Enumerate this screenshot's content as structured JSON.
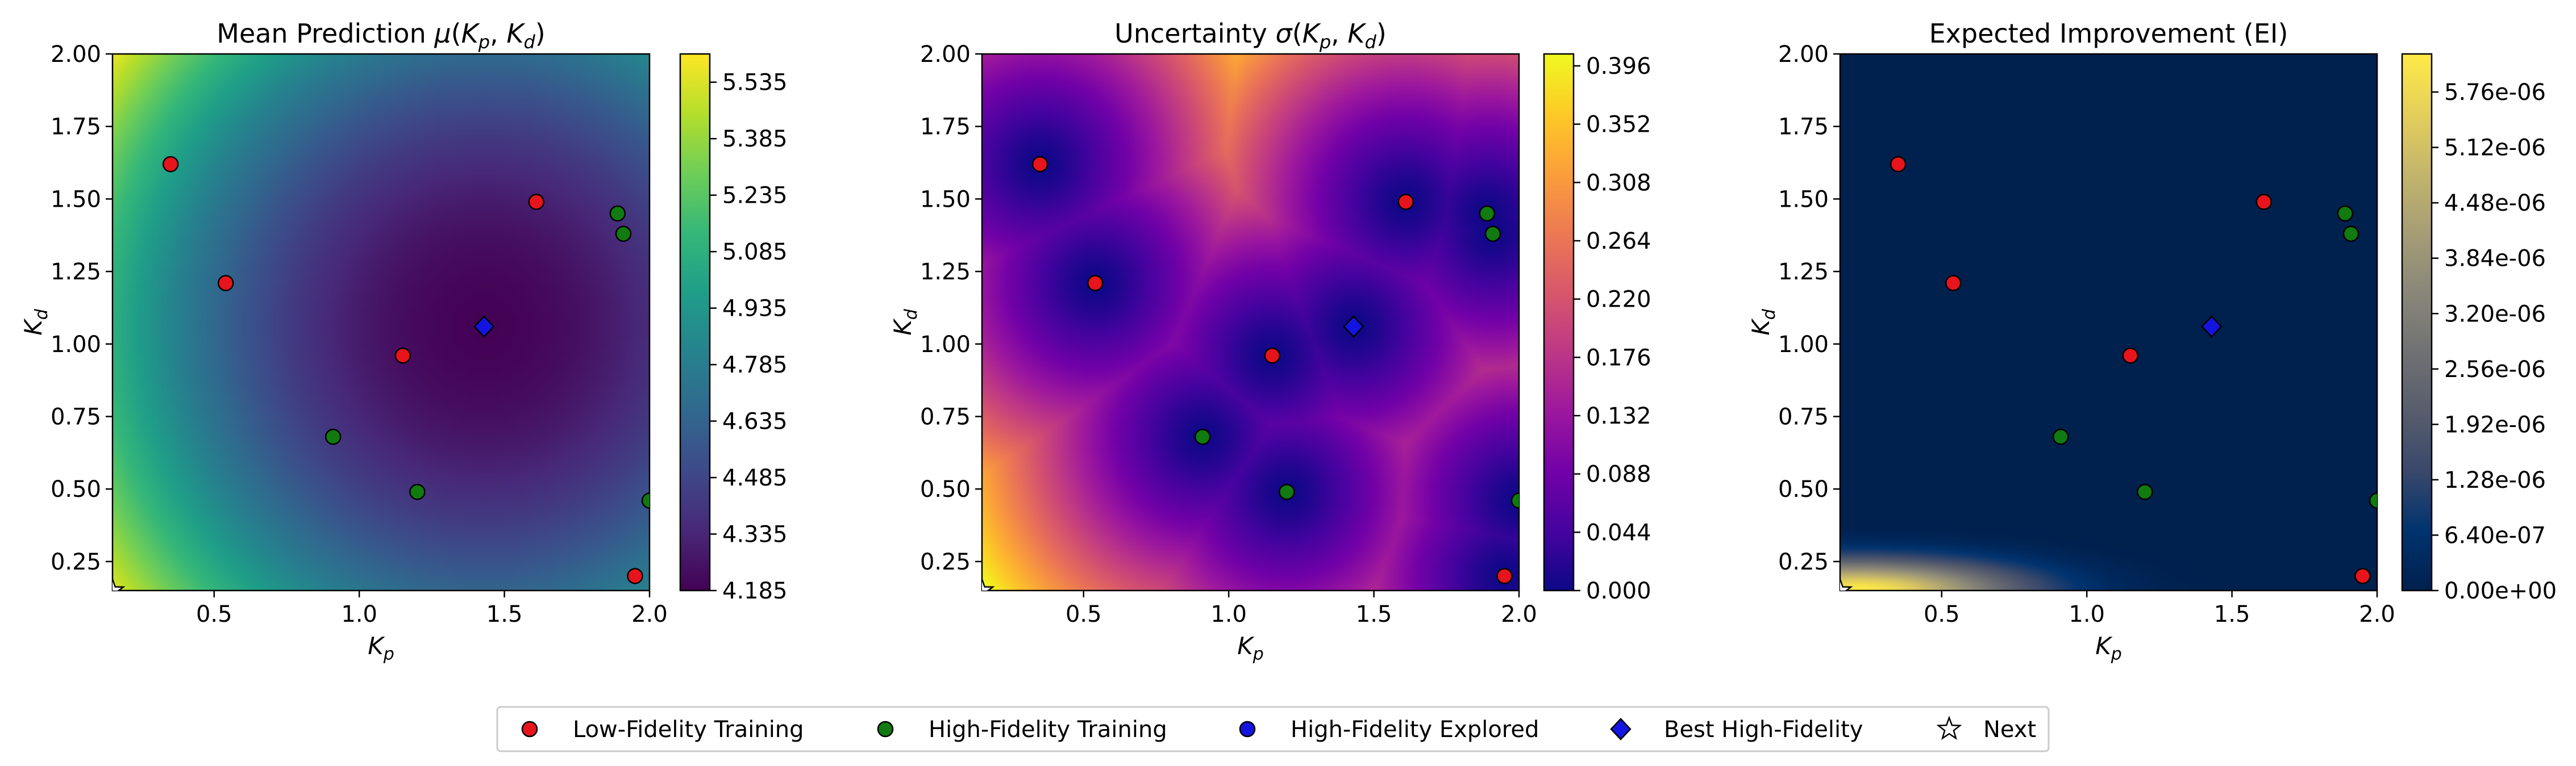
{
  "figure": {
    "legend": {
      "placement": "bottom-center",
      "entries": [
        {
          "label": "Low-Fidelity Training",
          "marker": "circle",
          "color": "#e8141c"
        },
        {
          "label": "High-Fidelity Training",
          "marker": "circle",
          "color": "#117a11"
        },
        {
          "label": "High-Fidelity Explored",
          "marker": "circle",
          "color": "#1414e0"
        },
        {
          "label": "Best High-Fidelity",
          "marker": "diamond",
          "color": "#1414e0"
        },
        {
          "label": "Next",
          "marker": "star",
          "color": "#ffffff"
        }
      ]
    }
  },
  "chart_data": [
    {
      "type": "heatmap",
      "title": "Mean Prediction μ(K_p, K_d)",
      "title_parts": {
        "prefix": "Mean Prediction ",
        "sym": "μ",
        "arg1": "K",
        "sub1": "p",
        "arg2": "K",
        "sub2": "d"
      },
      "xlabel": {
        "main": "K",
        "sub": "p"
      },
      "ylabel": {
        "main": "K",
        "sub": "d"
      },
      "xlim": [
        0.15,
        2.0
      ],
      "ylim": [
        0.15,
        2.0
      ],
      "xticks": [
        "0.5",
        "1.0",
        "1.5",
        "2.0"
      ],
      "yticks": [
        "0.25",
        "0.50",
        "0.75",
        "1.00",
        "1.25",
        "1.50",
        "1.75",
        "2.00"
      ],
      "colormap": "viridis",
      "colorbar": {
        "range": [
          4.185,
          5.61
        ],
        "ticks": [
          "4.185",
          "4.335",
          "4.485",
          "4.635",
          "4.785",
          "4.935",
          "5.085",
          "5.235",
          "5.385",
          "5.535"
        ]
      },
      "low_fidelity_training": [
        [
          0.35,
          1.62
        ],
        [
          0.54,
          1.21
        ],
        [
          1.15,
          0.96
        ],
        [
          1.61,
          1.49
        ],
        [
          1.95,
          0.2
        ]
      ],
      "high_fidelity_training": [
        [
          0.91,
          0.68
        ],
        [
          1.2,
          0.49
        ],
        [
          1.89,
          1.45
        ],
        [
          1.91,
          1.38
        ],
        [
          2.0,
          0.46
        ]
      ],
      "best_high_fidelity": [
        [
          1.43,
          1.06
        ]
      ],
      "next": [
        [
          0.15,
          0.15
        ]
      ]
    },
    {
      "type": "heatmap",
      "title": "Uncertainty σ(K_p, K_d)",
      "title_parts": {
        "prefix": "Uncertainty ",
        "sym": "σ",
        "arg1": "K",
        "sub1": "p",
        "arg2": "K",
        "sub2": "d"
      },
      "xlabel": {
        "main": "K",
        "sub": "p"
      },
      "ylabel": {
        "main": "K",
        "sub": "d"
      },
      "xlim": [
        0.15,
        2.0
      ],
      "ylim": [
        0.15,
        2.0
      ],
      "xticks": [
        "0.5",
        "1.0",
        "1.5",
        "2.0"
      ],
      "yticks": [
        "0.25",
        "0.50",
        "0.75",
        "1.00",
        "1.25",
        "1.50",
        "1.75",
        "2.00"
      ],
      "colormap": "plasma",
      "colorbar": {
        "range": [
          0.0,
          0.405
        ],
        "ticks": [
          "0.000",
          "0.044",
          "0.088",
          "0.132",
          "0.176",
          "0.220",
          "0.264",
          "0.308",
          "0.352",
          "0.396"
        ]
      },
      "low_fidelity_training": [
        [
          0.35,
          1.62
        ],
        [
          0.54,
          1.21
        ],
        [
          1.15,
          0.96
        ],
        [
          1.61,
          1.49
        ],
        [
          1.95,
          0.2
        ]
      ],
      "high_fidelity_training": [
        [
          0.91,
          0.68
        ],
        [
          1.2,
          0.49
        ],
        [
          1.89,
          1.45
        ],
        [
          1.91,
          1.38
        ],
        [
          2.0,
          0.46
        ]
      ],
      "best_high_fidelity": [
        [
          1.43,
          1.06
        ]
      ],
      "next": [
        [
          0.15,
          0.15
        ]
      ]
    },
    {
      "type": "heatmap",
      "title": "Expected Improvement (EI)",
      "title_parts": {
        "prefix": "Expected Improvement (EI)",
        "sym": "",
        "arg1": "",
        "sub1": "",
        "arg2": "",
        "sub2": ""
      },
      "xlabel": {
        "main": "K",
        "sub": "p"
      },
      "ylabel": {
        "main": "K",
        "sub": "d"
      },
      "xlim": [
        0.15,
        2.0
      ],
      "ylim": [
        0.15,
        2.0
      ],
      "xticks": [
        "0.5",
        "1.0",
        "1.5",
        "2.0"
      ],
      "yticks": [
        "0.25",
        "0.50",
        "0.75",
        "1.00",
        "1.25",
        "1.50",
        "1.75",
        "2.00"
      ],
      "colormap": "cividis",
      "colorbar": {
        "range": [
          0.0,
          6.2e-06
        ],
        "ticks": [
          "0.00e+00",
          "6.40e-07",
          "1.28e-06",
          "1.92e-06",
          "2.56e-06",
          "3.20e-06",
          "3.84e-06",
          "4.48e-06",
          "5.12e-06",
          "5.76e-06"
        ]
      },
      "low_fidelity_training": [
        [
          0.35,
          1.62
        ],
        [
          0.54,
          1.21
        ],
        [
          1.15,
          0.96
        ],
        [
          1.61,
          1.49
        ],
        [
          1.95,
          0.2
        ]
      ],
      "high_fidelity_training": [
        [
          0.91,
          0.68
        ],
        [
          1.2,
          0.49
        ],
        [
          1.89,
          1.45
        ],
        [
          1.91,
          1.38
        ],
        [
          2.0,
          0.46
        ]
      ],
      "best_high_fidelity": [
        [
          1.43,
          1.06
        ]
      ],
      "next": [
        [
          0.15,
          0.15
        ]
      ]
    }
  ]
}
